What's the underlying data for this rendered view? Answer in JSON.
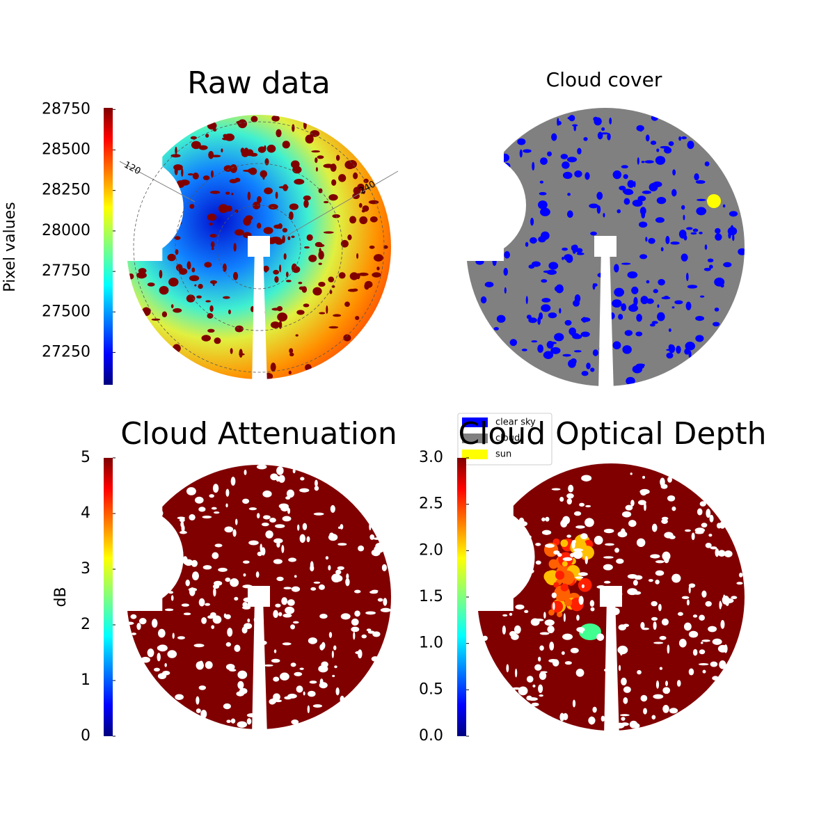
{
  "chart_data": [
    {
      "type": "image",
      "title": "Raw data",
      "colormap": "jet",
      "colorbar": {
        "label": "Pixel values",
        "lim": [
          27050,
          28760
        ],
        "ticks": [
          27250,
          27500,
          27750,
          28000,
          28250,
          28500,
          28750
        ]
      },
      "annotations": [
        "120",
        "240"
      ]
    },
    {
      "type": "image",
      "title": "Cloud cover",
      "legend": [
        {
          "name": "clear sky",
          "color": "#0000ff"
        },
        {
          "name": "cloud",
          "color": "#808080"
        },
        {
          "name": "sun",
          "color": "#ffff00"
        }
      ]
    },
    {
      "type": "image",
      "title": "Cloud Attenuation",
      "colormap": "jet",
      "colorbar": {
        "label": "dB",
        "lim": [
          0,
          5
        ],
        "ticks": [
          0,
          1,
          2,
          3,
          4,
          5
        ]
      }
    },
    {
      "type": "image",
      "title": "Cloud Optical Depth",
      "colormap": "jet",
      "colorbar": {
        "lim": [
          0,
          3
        ],
        "ticks": [
          {
            "value": 0,
            "label": "0.0"
          },
          {
            "value": 0.5,
            "label": "0.5"
          },
          {
            "value": 1,
            "label": "1.0"
          },
          {
            "value": 1.5,
            "label": "1.5"
          },
          {
            "value": 2,
            "label": "2.0"
          },
          {
            "value": 2.5,
            "label": "2.5"
          },
          {
            "value": 3,
            "label": "3.0"
          }
        ]
      }
    }
  ]
}
